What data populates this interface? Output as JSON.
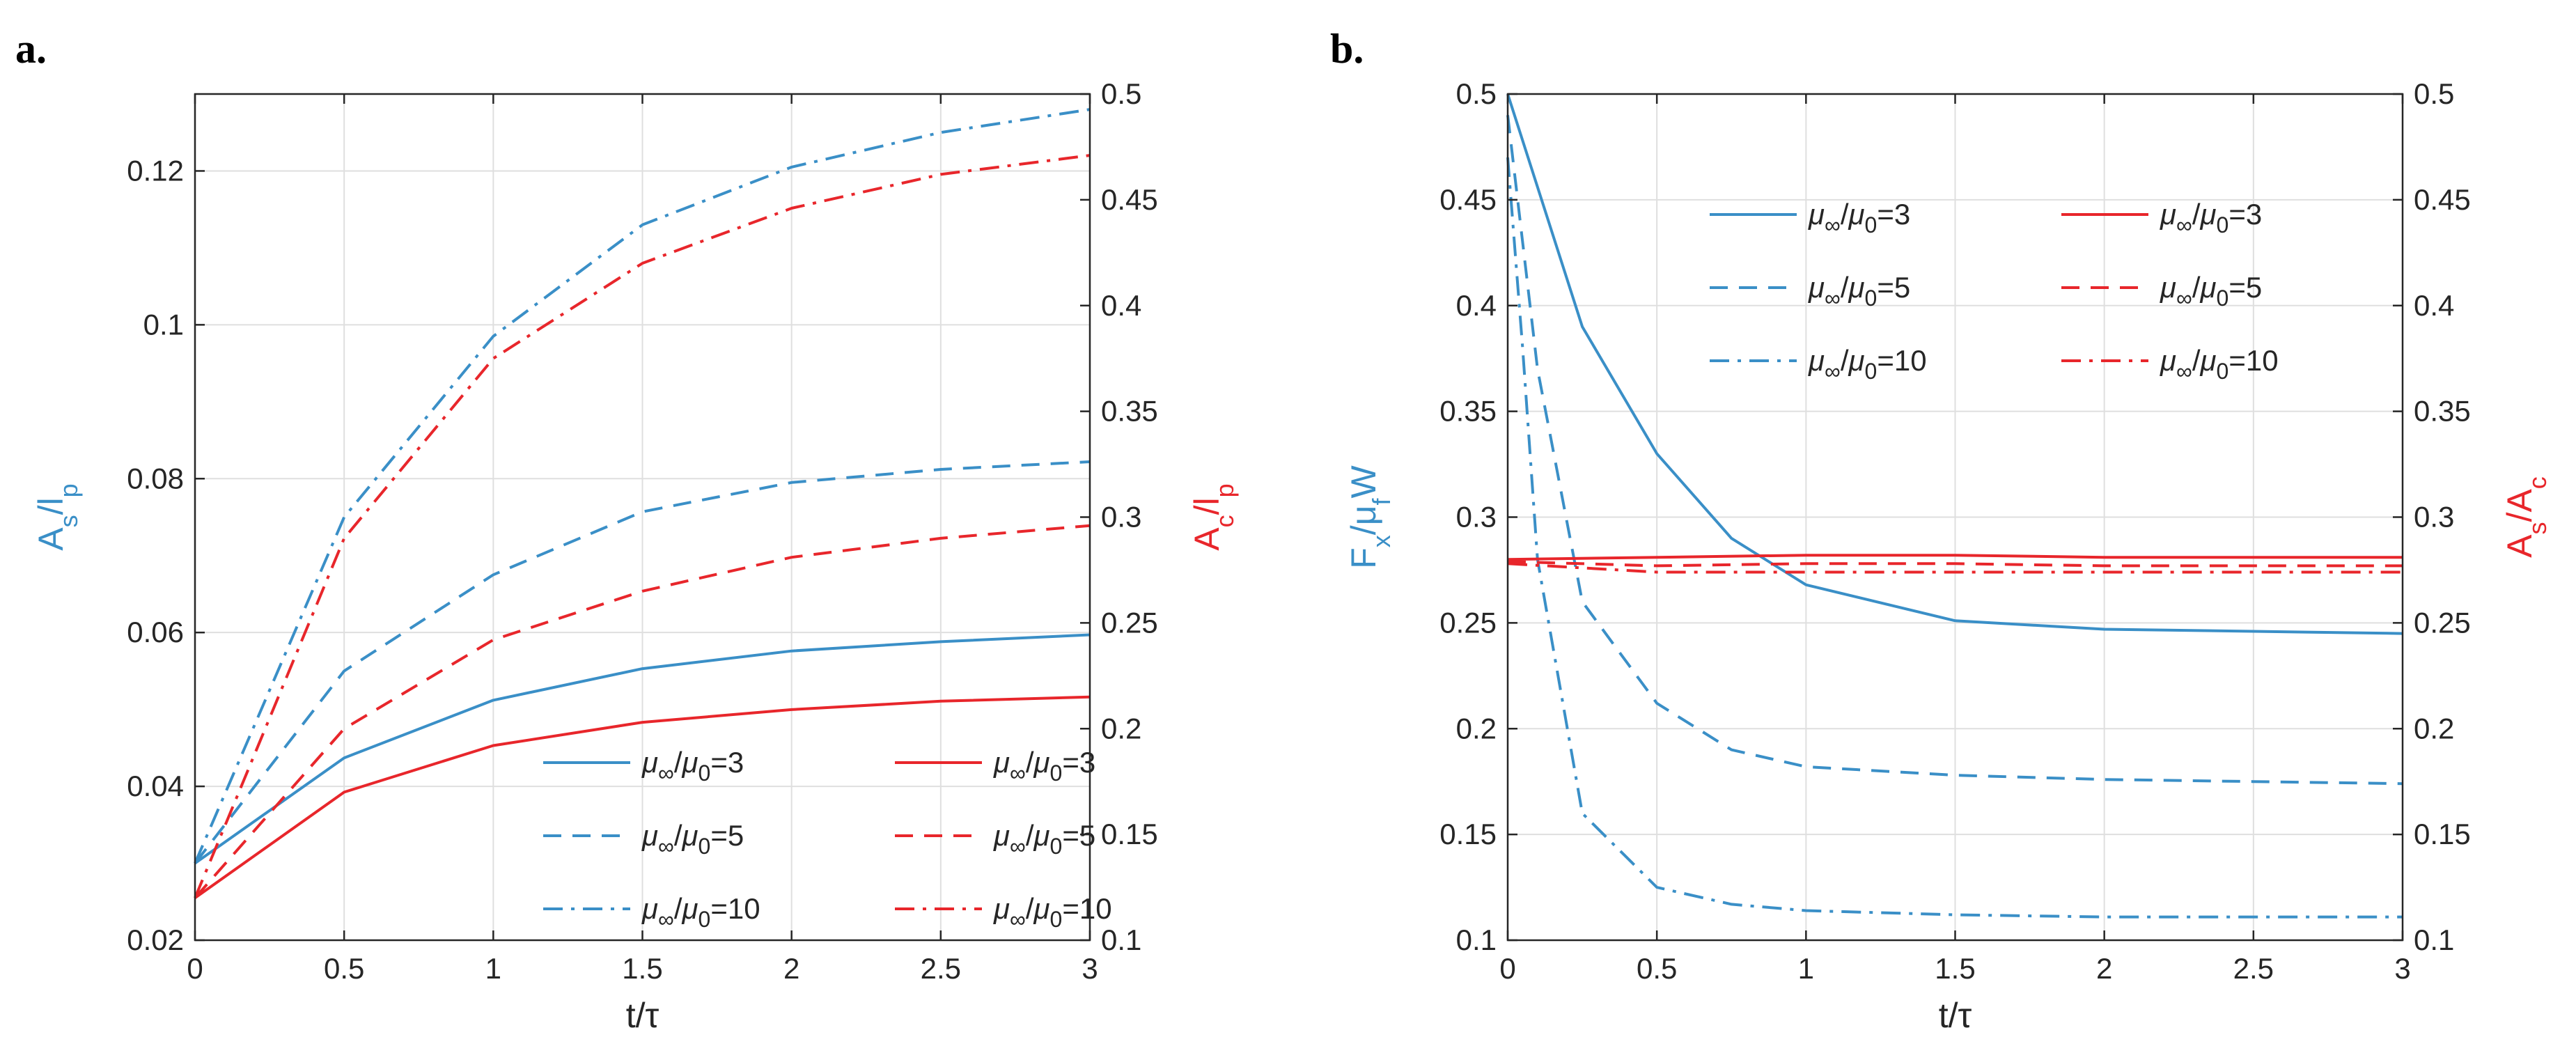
{
  "colors": {
    "blue": "#3a8fc7",
    "red": "#e8262b",
    "grid": "#dfdfdf",
    "axis": "#262626"
  },
  "chart_data": [
    {
      "type": "line",
      "panel_label": "a.",
      "xlabel": "t/τ",
      "ylabel_left": "As/lp",
      "ylabel_right": "Ac/lp",
      "xlim": [
        0,
        3
      ],
      "ylim_left": [
        0.02,
        0.13
      ],
      "ylim_right": [
        0.1,
        0.5
      ],
      "x_ticks": [
        "0",
        "0.5",
        "1",
        "1.5",
        "2",
        "2.5",
        "3"
      ],
      "y_ticks_left": [
        "0.02",
        "0.04",
        "0.06",
        "0.08",
        "0.1",
        "0.12"
      ],
      "y_ticks_right": [
        "0.1",
        "0.15",
        "0.2",
        "0.25",
        "0.3",
        "0.35",
        "0.4",
        "0.45",
        "0.5"
      ],
      "grid": true,
      "legend_position": "bottom-right",
      "series": [
        {
          "name": "μ∞/μ0=3",
          "axis": "left",
          "color": "blue",
          "dash": "solid",
          "x": [
            0,
            0.5,
            1,
            1.5,
            2,
            2.5,
            3
          ],
          "values": [
            0.03,
            0.0437,
            0.0512,
            0.0553,
            0.0576,
            0.0588,
            0.0597
          ]
        },
        {
          "name": "μ∞/μ0=5",
          "axis": "left",
          "color": "blue",
          "dash": "dashed",
          "x": [
            0,
            0.5,
            1,
            1.5,
            2,
            2.5,
            3
          ],
          "values": [
            0.03,
            0.055,
            0.0675,
            0.0757,
            0.0795,
            0.0812,
            0.0822
          ]
        },
        {
          "name": "μ∞/μ0=10",
          "axis": "left",
          "color": "blue",
          "dash": "dashdot",
          "x": [
            0,
            0.5,
            1,
            1.5,
            2,
            2.5,
            3
          ],
          "values": [
            0.03,
            0.075,
            0.0985,
            0.113,
            0.1205,
            0.125,
            0.128
          ]
        },
        {
          "name": "μ∞/μ0=3",
          "axis": "right",
          "color": "red",
          "dash": "solid",
          "x": [
            0,
            0.5,
            1,
            1.5,
            2,
            2.5,
            3
          ],
          "values": [
            0.12,
            0.17,
            0.192,
            0.203,
            0.209,
            0.213,
            0.215
          ]
        },
        {
          "name": "μ∞/μ0=5",
          "axis": "right",
          "color": "red",
          "dash": "dashed",
          "x": [
            0,
            0.5,
            1,
            1.5,
            2,
            2.5,
            3
          ],
          "values": [
            0.12,
            0.2,
            0.242,
            0.265,
            0.281,
            0.29,
            0.296
          ]
        },
        {
          "name": "μ∞/μ0=10",
          "axis": "right",
          "color": "red",
          "dash": "dashdot",
          "x": [
            0,
            0.5,
            1,
            1.5,
            2,
            2.5,
            3
          ],
          "values": [
            0.12,
            0.29,
            0.375,
            0.42,
            0.446,
            0.462,
            0.471
          ]
        }
      ]
    },
    {
      "type": "line",
      "panel_label": "b.",
      "xlabel": "t/τ",
      "ylabel_left": "Fx/μfW",
      "ylabel_right": "As/Ac",
      "xlim": [
        0,
        3
      ],
      "ylim_left": [
        0.1,
        0.5
      ],
      "ylim_right": [
        0.1,
        0.5
      ],
      "x_ticks": [
        "0",
        "0.5",
        "1",
        "1.5",
        "2",
        "2.5",
        "3"
      ],
      "y_ticks_left": [
        "0.1",
        "0.15",
        "0.2",
        "0.25",
        "0.3",
        "0.35",
        "0.4",
        "0.45",
        "0.5"
      ],
      "y_ticks_right": [
        "0.1",
        "0.15",
        "0.2",
        "0.25",
        "0.3",
        "0.35",
        "0.4",
        "0.45",
        "0.5"
      ],
      "grid": true,
      "legend_position": "top",
      "series": [
        {
          "name": "μ∞/μ0=3",
          "axis": "left",
          "color": "blue",
          "dash": "solid",
          "x": [
            0,
            0.25,
            0.5,
            0.75,
            1,
            1.5,
            2,
            2.5,
            3
          ],
          "values": [
            0.5,
            0.39,
            0.33,
            0.29,
            0.268,
            0.251,
            0.247,
            0.246,
            0.245
          ]
        },
        {
          "name": "μ∞/μ0=5",
          "axis": "left",
          "color": "blue",
          "dash": "dashed",
          "x": [
            0,
            0.1,
            0.25,
            0.5,
            0.75,
            1,
            1.5,
            2,
            2.5,
            3
          ],
          "values": [
            0.49,
            0.37,
            0.26,
            0.212,
            0.19,
            0.182,
            0.178,
            0.176,
            0.175,
            0.174
          ]
        },
        {
          "name": "μ∞/μ0=10",
          "axis": "left",
          "color": "blue",
          "dash": "dashdot",
          "x": [
            0,
            0.05,
            0.1,
            0.25,
            0.5,
            0.75,
            1,
            1.5,
            2,
            2.5,
            3
          ],
          "values": [
            0.47,
            0.38,
            0.28,
            0.16,
            0.125,
            0.117,
            0.114,
            0.112,
            0.111,
            0.111,
            0.111
          ]
        },
        {
          "name": "μ∞/μ0=3",
          "axis": "right",
          "color": "red",
          "dash": "solid",
          "x": [
            0,
            0.5,
            1,
            1.5,
            2,
            2.5,
            3
          ],
          "values": [
            0.28,
            0.281,
            0.282,
            0.282,
            0.281,
            0.281,
            0.281
          ]
        },
        {
          "name": "μ∞/μ0=5",
          "axis": "right",
          "color": "red",
          "dash": "dashed",
          "x": [
            0,
            0.5,
            1,
            1.5,
            2,
            2.5,
            3
          ],
          "values": [
            0.279,
            0.277,
            0.278,
            0.278,
            0.277,
            0.277,
            0.277
          ]
        },
        {
          "name": "μ∞/μ0=10",
          "axis": "right",
          "color": "red",
          "dash": "dashdot",
          "x": [
            0,
            0.5,
            1,
            1.5,
            2,
            2.5,
            3
          ],
          "values": [
            0.278,
            0.274,
            0.274,
            0.274,
            0.274,
            0.274,
            0.274
          ]
        }
      ]
    }
  ]
}
